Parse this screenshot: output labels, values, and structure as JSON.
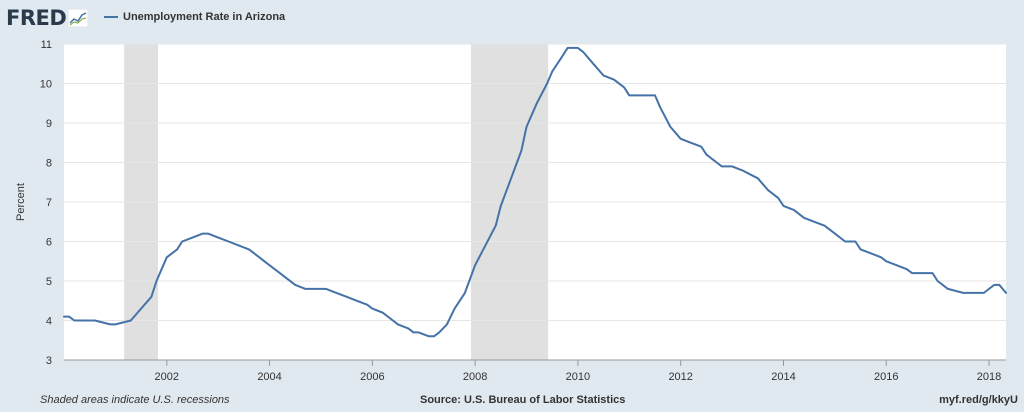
{
  "header": {
    "logo_text": "FRED",
    "legend_label": "Unemployment Rate in Arizona",
    "series_color": "#4572a7"
  },
  "footer": {
    "left": "Shaded areas indicate U.S. recessions",
    "center": "Source: U.S. Bureau of Labor Statistics",
    "right": "myf.red/g/kkyU"
  },
  "chart_data": {
    "type": "line",
    "title": "",
    "xlabel": "",
    "ylabel": "Percent",
    "xlim": [
      2000.0,
      2018.33
    ],
    "ylim": [
      3,
      11
    ],
    "y_ticks": [
      3,
      4,
      5,
      6,
      7,
      8,
      9,
      10,
      11
    ],
    "x_ticks": [
      2002,
      2004,
      2006,
      2008,
      2010,
      2012,
      2014,
      2016,
      2018
    ],
    "grid": true,
    "legend_position": "top-left",
    "recessions": [
      [
        2001.17,
        2001.83
      ],
      [
        2007.92,
        2009.42
      ]
    ],
    "recession_color": "#e0e0e0",
    "series": [
      {
        "name": "Unemployment Rate in Arizona",
        "color": "#4572a7",
        "x": [
          2000.0,
          2000.1,
          2000.2,
          2000.5,
          2000.6,
          2000.9,
          2001.0,
          2001.3,
          2001.5,
          2001.7,
          2001.8,
          2001.9,
          2002.0,
          2002.2,
          2002.3,
          2002.5,
          2002.7,
          2002.8,
          2003.0,
          2003.2,
          2003.4,
          2003.6,
          2003.8,
          2003.9,
          2004.1,
          2004.2,
          2004.3,
          2004.5,
          2004.7,
          2004.9,
          2005.1,
          2005.3,
          2005.5,
          2005.7,
          2005.9,
          2006.0,
          2006.2,
          2006.4,
          2006.5,
          2006.7,
          2006.8,
          2006.9,
          2007.1,
          2007.2,
          2007.3,
          2007.45,
          2007.6,
          2007.8,
          2008.0,
          2008.2,
          2008.4,
          2008.5,
          2008.7,
          2008.9,
          2009.0,
          2009.2,
          2009.4,
          2009.5,
          2009.7,
          2009.8,
          2010.0,
          2010.1,
          2010.3,
          2010.5,
          2010.7,
          2010.9,
          2011.0,
          2011.2,
          2011.5,
          2011.6,
          2011.8,
          2012.0,
          2012.2,
          2012.4,
          2012.5,
          2012.7,
          2012.8,
          2013.0,
          2013.2,
          2013.5,
          2013.7,
          2013.9,
          2014.0,
          2014.2,
          2014.4,
          2014.6,
          2014.8,
          2015.0,
          2015.2,
          2015.4,
          2015.5,
          2015.7,
          2015.9,
          2016.0,
          2016.2,
          2016.4,
          2016.5,
          2016.7,
          2016.9,
          2017.0,
          2017.2,
          2017.5,
          2017.7,
          2017.9,
          2018.0,
          2018.1,
          2018.2,
          2018.33
        ],
        "values": [
          4.1,
          4.1,
          4.0,
          4.0,
          4.0,
          3.9,
          3.9,
          4.0,
          4.3,
          4.6,
          5.0,
          5.3,
          5.6,
          5.8,
          6.0,
          6.1,
          6.2,
          6.2,
          6.1,
          6.0,
          5.9,
          5.8,
          5.6,
          5.5,
          5.3,
          5.2,
          5.1,
          4.9,
          4.8,
          4.8,
          4.8,
          4.7,
          4.6,
          4.5,
          4.4,
          4.3,
          4.2,
          4.0,
          3.9,
          3.8,
          3.7,
          3.7,
          3.6,
          3.6,
          3.7,
          3.9,
          4.3,
          4.7,
          5.4,
          5.9,
          6.4,
          6.9,
          7.6,
          8.3,
          8.9,
          9.5,
          10.0,
          10.3,
          10.7,
          10.9,
          10.9,
          10.8,
          10.5,
          10.2,
          10.1,
          9.9,
          9.7,
          9.7,
          9.7,
          9.4,
          8.9,
          8.6,
          8.5,
          8.4,
          8.2,
          8.0,
          7.9,
          7.9,
          7.8,
          7.6,
          7.3,
          7.1,
          6.9,
          6.8,
          6.6,
          6.5,
          6.4,
          6.2,
          6.0,
          6.0,
          5.8,
          5.7,
          5.6,
          5.5,
          5.4,
          5.3,
          5.2,
          5.2,
          5.2,
          5.0,
          4.8,
          4.7,
          4.7,
          4.7,
          4.8,
          4.9,
          4.9,
          4.7
        ]
      }
    ]
  }
}
